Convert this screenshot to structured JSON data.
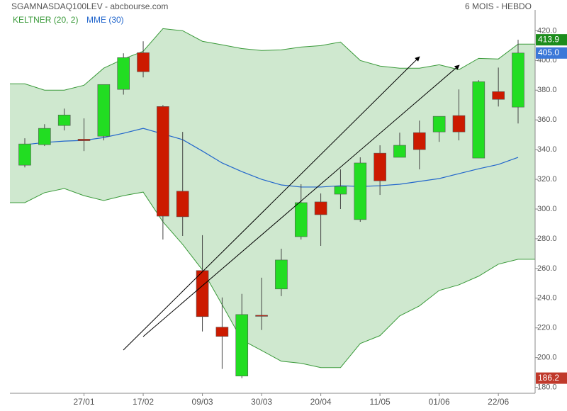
{
  "chart_data": {
    "type": "candlestick",
    "title": "SGAMNASDAQ100LEV - abcbourse.com",
    "subtitle": "6 MOIS - HEBDO",
    "categories": [
      null,
      null,
      null,
      "27/01",
      null,
      null,
      "17/02",
      null,
      null,
      "09/03",
      null,
      null,
      "30/03",
      null,
      null,
      "20/04",
      null,
      null,
      "11/05",
      null,
      null,
      "01/06",
      null,
      null,
      "22/06",
      null
    ],
    "open": [
      329.5,
      343.3,
      356.2,
      347,
      349,
      380.5,
      405.2,
      369,
      312,
      258.6,
      220.5,
      187.6,
      228.5,
      246.2,
      281.4,
      304.8,
      310,
      292.9,
      337.6,
      334.8,
      351.4,
      351.9,
      362.9,
      334.3,
      379,
      368.6
    ],
    "high": [
      347.6,
      357.1,
      367.6,
      361,
      383.8,
      404.8,
      412.9,
      370,
      351.9,
      282.4,
      240.5,
      242.9,
      253.8,
      273.3,
      316.7,
      310.5,
      326.7,
      334.8,
      342.9,
      351.4,
      359.5,
      362.4,
      380.5,
      386.7,
      395.2,
      413.9
    ],
    "low": [
      328,
      342.4,
      352.9,
      339,
      346.2,
      377,
      388.6,
      279.5,
      281.9,
      217.6,
      192.4,
      186.2,
      218.6,
      241.4,
      279.5,
      275.2,
      300,
      291.4,
      309.5,
      334.8,
      326.7,
      345.2,
      346.2,
      334.3,
      369,
      357.6
    ],
    "close": [
      343.8,
      354.3,
      363.3,
      346,
      383.8,
      401.9,
      392.4,
      295.2,
      294.8,
      227.6,
      214.3,
      229,
      228,
      265.7,
      304.3,
      296.2,
      315.2,
      331,
      319,
      342.9,
      340,
      362.4,
      351.9,
      385.7,
      373.8,
      405.0
    ],
    "up_color": "#22dd22",
    "down_color": "#cc1a00",
    "bands": {
      "name": "KELTNER (20, 2)",
      "color": "#3a9a3a",
      "fill": "#cfe8cf",
      "upper": [
        384.3,
        380,
        380,
        383.3,
        394.8,
        401,
        406.2,
        421.4,
        420,
        412.9,
        410.5,
        408,
        406.7,
        407.1,
        409,
        410,
        412.4,
        400,
        396.2,
        394.8,
        394.8,
        397.1,
        393.8,
        401.4,
        401,
        411
      ],
      "lower": [
        304.3,
        311,
        313.8,
        309,
        305.7,
        309,
        311.4,
        291.4,
        276.2,
        259,
        235.7,
        211.9,
        204.8,
        197.6,
        196.2,
        193.3,
        193.3,
        209.5,
        214.8,
        228.1,
        234.8,
        245.2,
        249,
        254.8,
        262.9,
        266.2
      ]
    },
    "series": [
      {
        "name": "MME (30)",
        "color": "#2266cc",
        "values": [
          343.3,
          344.8,
          345.7,
          346.2,
          348.1,
          351,
          354.3,
          350.5,
          346.7,
          339,
          331,
          325.2,
          320,
          316.2,
          314.8,
          314.8,
          315.7,
          315.2,
          315.7,
          316.7,
          318.6,
          320.5,
          323.8,
          327.1,
          330,
          334.8
        ]
      }
    ],
    "badges": [
      {
        "value": 413.9,
        "color": "#1c8c1c"
      },
      {
        "value": 405.0,
        "label": "405.0",
        "color": "#3b78d8"
      },
      {
        "value": 186.2,
        "color": "#c0392b"
      }
    ],
    "ylim": [
      176,
      434
    ],
    "yticks": [
      {
        "value": 180,
        "label": "180.0"
      },
      {
        "value": 200,
        "label": "200.0"
      },
      {
        "value": 220,
        "label": "220.0"
      },
      {
        "value": 240,
        "label": "240.0"
      },
      {
        "value": 260,
        "label": "260.0"
      },
      {
        "value": 280,
        "label": "280.0"
      },
      {
        "value": 300,
        "label": "300.0"
      },
      {
        "value": 320,
        "label": "320.0"
      },
      {
        "value": 340,
        "label": "340.0"
      },
      {
        "value": 360,
        "label": "360.0"
      },
      {
        "value": 380,
        "label": "380.0"
      },
      {
        "value": 400,
        "label": "400.0"
      },
      {
        "value": 420,
        "label": "420.0"
      }
    ]
  }
}
